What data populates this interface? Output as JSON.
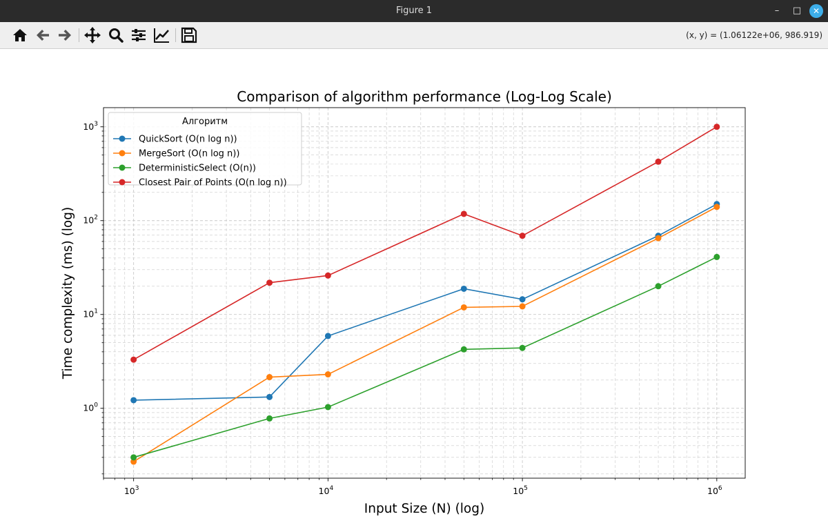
{
  "window": {
    "title": "Figure 1",
    "minimize_label": "–",
    "maximize_label": "□",
    "close_label": "✕"
  },
  "toolbar": {
    "buttons": [
      {
        "name": "home-icon"
      },
      {
        "name": "back-arrow-icon"
      },
      {
        "name": "forward-arrow-icon"
      },
      {
        "name": "pan-move-icon"
      },
      {
        "name": "zoom-magnifier-icon"
      },
      {
        "name": "configure-subplots-icon"
      },
      {
        "name": "edit-axis-icon"
      },
      {
        "name": "save-floppy-icon"
      }
    ],
    "coords": "(x, y) = (1.06122e+06, 986.919)"
  },
  "chart_data": {
    "type": "line",
    "title": "Comparison of algorithm performance (Log-Log Scale)",
    "xlabel": "Input Size (N) (log)",
    "ylabel": "Time complexity (ms) (log)",
    "xscale": "log",
    "yscale": "log",
    "xlim": [
      700,
      1400000
    ],
    "ylim": [
      0.18,
      1600
    ],
    "grid": true,
    "legend": {
      "title": "Алгоритм",
      "placement": "top-left"
    },
    "x": [
      1000,
      5000,
      10000,
      50000,
      100000,
      500000,
      1000000
    ],
    "xticks": [
      {
        "base": "10",
        "exp": "3",
        "value": 1000
      },
      {
        "base": "10",
        "exp": "4",
        "value": 10000
      },
      {
        "base": "10",
        "exp": "5",
        "value": 100000
      },
      {
        "base": "10",
        "exp": "6",
        "value": 1000000
      }
    ],
    "yticks": [
      {
        "base": "10",
        "exp": "0",
        "value": 1
      },
      {
        "base": "10",
        "exp": "1",
        "value": 10
      },
      {
        "base": "10",
        "exp": "2",
        "value": 100
      },
      {
        "base": "10",
        "exp": "3",
        "value": 1000
      }
    ],
    "series": [
      {
        "name": "QuickSort (O(n log n))",
        "color": "#1f77b4",
        "values": [
          1.22,
          1.32,
          5.9,
          18.8,
          14.5,
          69,
          150
        ]
      },
      {
        "name": "MergeSort (O(n log n))",
        "color": "#ff7f0e",
        "values": [
          0.27,
          2.15,
          2.3,
          11.9,
          12.2,
          65,
          140
        ]
      },
      {
        "name": "DeterministicSelect (O(n))",
        "color": "#2ca02c",
        "values": [
          0.3,
          0.78,
          1.03,
          4.25,
          4.4,
          20,
          41
        ]
      },
      {
        "name": "Closest Pair of Points (O(n log n))",
        "color": "#d62728",
        "values": [
          3.3,
          21.8,
          26,
          118,
          69,
          425,
          1000
        ]
      }
    ]
  }
}
